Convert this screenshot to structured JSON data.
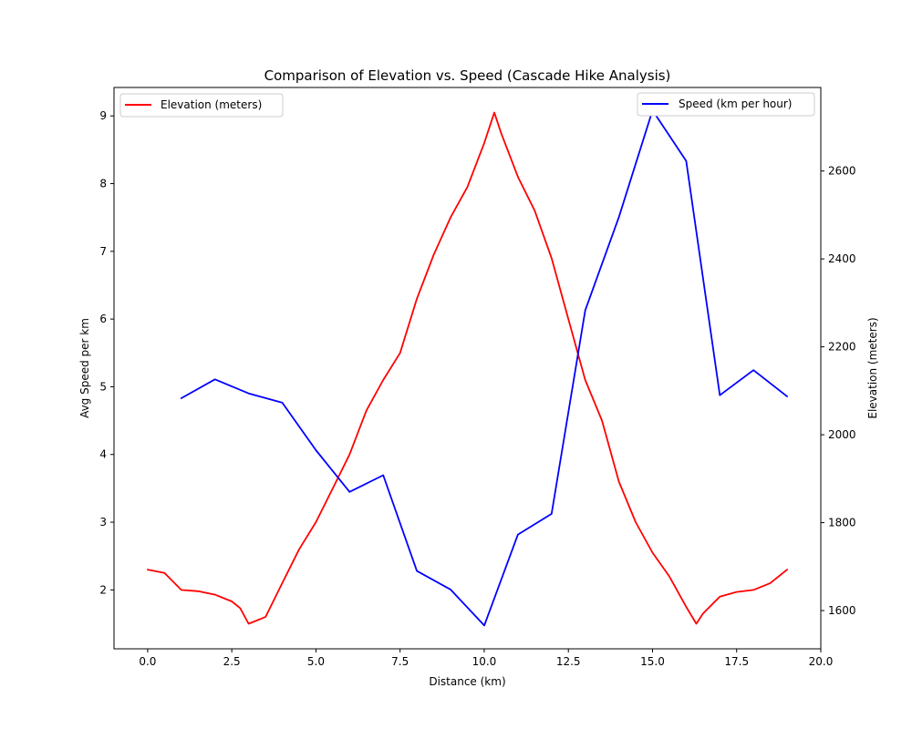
{
  "chart_data": {
    "type": "line",
    "title": "Comparison of Elevation vs. Speed (Cascade Hike Analysis)",
    "xlabel": "Distance (km)",
    "ylabel_left": "Avg Speed per km",
    "ylabel_right": "Elevation (meters)",
    "xlim": [
      -1,
      20
    ],
    "ylim_left": [
      1.13,
      9.42
    ],
    "ylim_right": [
      1513,
      2790
    ],
    "x_ticks": [
      0.0,
      2.5,
      5.0,
      7.5,
      10.0,
      12.5,
      15.0,
      17.5,
      20.0
    ],
    "x_tick_labels": [
      "0.0",
      "2.5",
      "5.0",
      "7.5",
      "10.0",
      "12.5",
      "15.0",
      "17.5",
      "20.0"
    ],
    "y_left_ticks": [
      2,
      3,
      4,
      5,
      6,
      7,
      8,
      9
    ],
    "y_left_tick_labels": [
      "2",
      "3",
      "4",
      "5",
      "6",
      "7",
      "8",
      "9"
    ],
    "y_right_ticks": [
      1600,
      1800,
      2000,
      2200,
      2400,
      2600
    ],
    "y_right_tick_labels": [
      "1600",
      "1800",
      "2000",
      "2200",
      "2400",
      "2600"
    ],
    "grid": false,
    "series": [
      {
        "name": "Elevation (meters)",
        "axis": "left",
        "color": "#ff0000",
        "x": [
          0,
          0.5,
          1,
          1.5,
          2,
          2.5,
          2.75,
          3,
          3.5,
          4,
          4.5,
          5,
          5.5,
          6,
          6.5,
          7,
          7.5,
          8,
          8.5,
          9,
          9.5,
          10,
          10.3,
          10.5,
          11,
          11.5,
          12,
          12.5,
          13,
          13.5,
          14,
          14.5,
          15,
          15.5,
          16,
          16.3,
          16.5,
          17,
          17.5,
          18,
          18.5,
          19
        ],
        "y": [
          2.3,
          2.25,
          2.0,
          1.98,
          1.93,
          1.83,
          1.73,
          1.5,
          1.6,
          2.1,
          2.6,
          3.0,
          3.5,
          4.0,
          4.65,
          5.1,
          5.5,
          6.3,
          6.95,
          7.5,
          7.95,
          8.6,
          9.05,
          8.75,
          8.1,
          7.6,
          6.9,
          6.0,
          5.1,
          4.5,
          3.6,
          3.0,
          2.55,
          2.2,
          1.75,
          1.5,
          1.65,
          1.9,
          1.97,
          2.0,
          2.1,
          2.3
        ]
      },
      {
        "name": "Speed (km per hour)",
        "axis": "right",
        "color": "#0000ff",
        "x": [
          1,
          2,
          3,
          4,
          5,
          6,
          7,
          8,
          9,
          10,
          11,
          12,
          13,
          14,
          15,
          16,
          17,
          18,
          19
        ],
        "y": [
          2083,
          2126,
          2094,
          2073,
          1965,
          1870,
          1908,
          1690,
          1648,
          1566,
          1773,
          1820,
          2283,
          2495,
          2738,
          2623,
          2090,
          2147,
          2087
        ]
      }
    ],
    "legend_left_position": "upper-left",
    "legend_right_position": "upper-right"
  }
}
